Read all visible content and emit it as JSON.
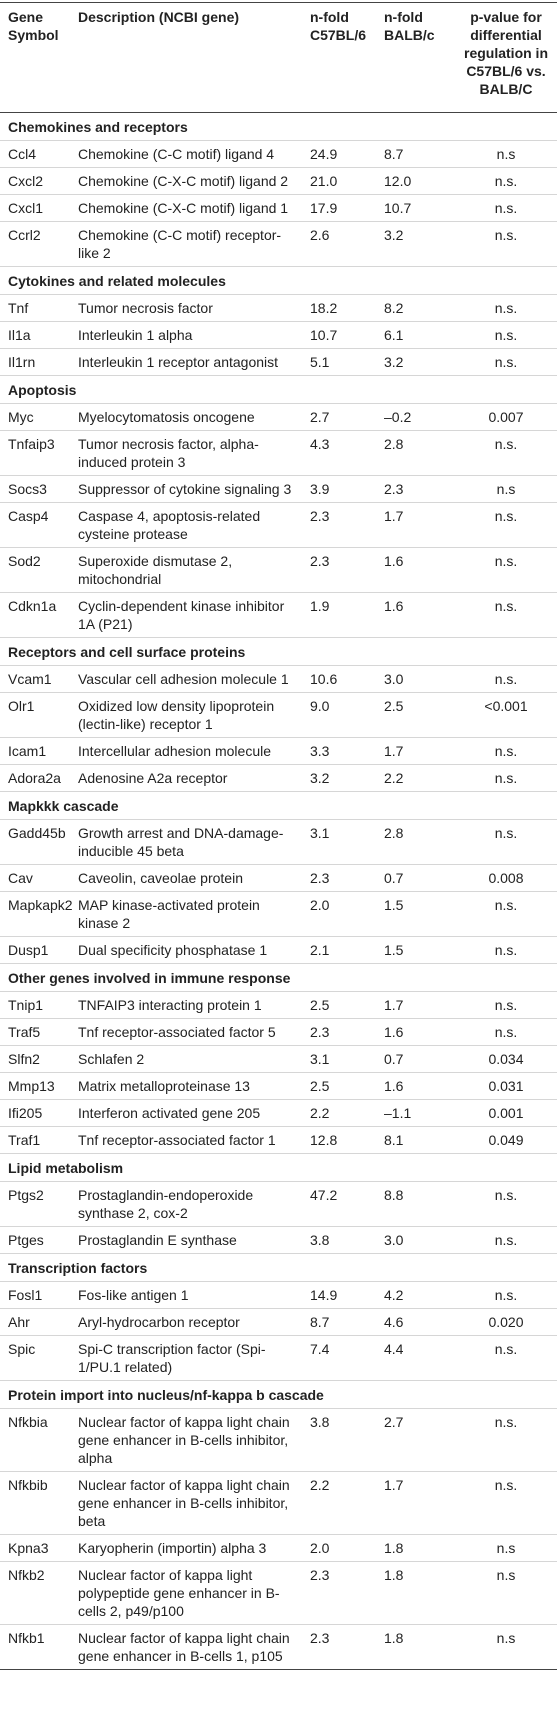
{
  "table": {
    "header": [
      "Gene Symbol",
      "Description (NCBI gene)",
      "n-fold C57BL/6",
      "n-fold BALB/c",
      "p-value for differential regulation in C57BL/6 vs. BALB/C"
    ],
    "sections": [
      {
        "title": "Chemokines and receptors",
        "rows": [
          [
            "Ccl4",
            "Chemokine (C-C motif) ligand 4",
            "24.9",
            "8.7",
            "n.s"
          ],
          [
            "Cxcl2",
            "Chemokine (C-X-C motif) ligand 2",
            "21.0",
            "12.0",
            "n.s."
          ],
          [
            "Cxcl1",
            "Chemokine (C-X-C motif) ligand 1",
            "17.9",
            "10.7",
            "n.s."
          ],
          [
            "Ccrl2",
            "Chemokine (C-C motif) receptor-like 2",
            "2.6",
            "3.2",
            "n.s."
          ]
        ]
      },
      {
        "title": "Cytokines and related molecules",
        "rows": [
          [
            "Tnf",
            "Tumor necrosis factor",
            "18.2",
            "8.2",
            "n.s."
          ],
          [
            "Il1a",
            "Interleukin 1 alpha",
            "10.7",
            "6.1",
            "n.s."
          ],
          [
            "Il1rn",
            "Interleukin 1 receptor antagonist",
            "5.1",
            "3.2",
            "n.s."
          ]
        ]
      },
      {
        "title": "Apoptosis",
        "rows": [
          [
            "Myc",
            "Myelocytomatosis oncogene",
            "2.7",
            "–0.2",
            "0.007"
          ],
          [
            "Tnfaip3",
            "Tumor necrosis factor, alpha-induced protein 3",
            "4.3",
            "2.8",
            "n.s."
          ],
          [
            "Socs3",
            "Suppressor of cytokine signaling 3",
            "3.9",
            "2.3",
            "n.s"
          ],
          [
            "Casp4",
            "Caspase 4, apoptosis-related cysteine protease",
            "2.3",
            "1.7",
            "n.s."
          ],
          [
            "Sod2",
            "Superoxide dismutase 2, mitochondrial",
            "2.3",
            "1.6",
            "n.s."
          ],
          [
            "Cdkn1a",
            "Cyclin-dependent kinase inhibitor 1A (P21)",
            "1.9",
            "1.6",
            "n.s."
          ]
        ]
      },
      {
        "title": "Receptors and cell surface proteins",
        "rows": [
          [
            "Vcam1",
            "Vascular cell adhesion molecule 1",
            "10.6",
            "3.0",
            "n.s."
          ],
          [
            "Olr1",
            "Oxidized low density lipoprotein (lectin-like) receptor 1",
            "9.0",
            "2.5",
            "<0.001"
          ],
          [
            "Icam1",
            "Intercellular adhesion molecule",
            "3.3",
            "1.7",
            "n.s."
          ],
          [
            "Adora2a",
            "Adenosine A2a receptor",
            "3.2",
            "2.2",
            "n.s."
          ]
        ]
      },
      {
        "title": "Mapkkk cascade",
        "rows": [
          [
            "Gadd45b",
            "Growth arrest and DNA-damage-inducible 45 beta",
            "3.1",
            "2.8",
            "n.s."
          ],
          [
            "Cav",
            "Caveolin, caveolae protein",
            "2.3",
            "0.7",
            "0.008"
          ],
          [
            "Mapkapk2",
            "MAP kinase-activated protein kinase 2",
            "2.0",
            "1.5",
            "n.s."
          ],
          [
            "Dusp1",
            "Dual specificity phosphatase 1",
            "2.1",
            "1.5",
            "n.s."
          ]
        ]
      },
      {
        "title": "Other genes involved in immune response",
        "rows": [
          [
            "Tnip1",
            "TNFAIP3 interacting protein 1",
            "2.5",
            "1.7",
            "n.s."
          ],
          [
            "Traf5",
            "Tnf receptor-associated factor 5",
            "2.3",
            "1.6",
            "n.s."
          ],
          [
            "Slfn2",
            "Schlafen 2",
            "3.1",
            "0.7",
            "0.034"
          ],
          [
            "Mmp13",
            "Matrix metalloproteinase 13",
            "2.5",
            "1.6",
            "0.031"
          ],
          [
            "Ifi205",
            "Interferon activated gene 205",
            "2.2",
            "–1.1",
            "0.001"
          ],
          [
            "Traf1",
            "Tnf receptor-associated factor 1",
            "12.8",
            "8.1",
            "0.049"
          ]
        ]
      },
      {
        "title": "Lipid metabolism",
        "rows": [
          [
            "Ptgs2",
            "Prostaglandin-endoperoxide synthase 2, cox-2",
            "47.2",
            "8.8",
            "n.s."
          ],
          [
            "Ptges",
            "Prostaglandin E synthase",
            "3.8",
            "3.0",
            "n.s."
          ]
        ]
      },
      {
        "title": "Transcription factors",
        "rows": [
          [
            "Fosl1",
            "Fos-like antigen 1",
            "14.9",
            "4.2",
            "n.s."
          ],
          [
            "Ahr",
            "Aryl-hydrocarbon receptor",
            "8.7",
            "4.6",
            "0.020"
          ],
          [
            "Spic",
            "Spi-C transcription factor (Spi-1/PU.1 related)",
            "7.4",
            "4.4",
            "n.s."
          ]
        ]
      },
      {
        "title": "Protein import into nucleus/nf-kappa b cascade",
        "rows": [
          [
            "Nfkbia",
            "Nuclear factor of kappa light chain gene enhancer in B-cells inhibitor, alpha",
            "3.8",
            "2.7",
            "n.s."
          ],
          [
            "Nfkbib",
            "Nuclear factor of kappa light chain gene enhancer in B-cells inhibitor, beta",
            "2.2",
            "1.7",
            "n.s."
          ],
          [
            "Kpna3",
            "Karyopherin (importin) alpha 3",
            "2.0",
            "1.8",
            "n.s"
          ],
          [
            "Nfkb2",
            "Nuclear factor of kappa light polypeptide gene enhancer in B-cells 2, p49/p100",
            "2.3",
            "1.8",
            "n.s"
          ],
          [
            "Nfkb1",
            "Nuclear factor of kappa light chain gene enhancer in B-cells 1, p105",
            "2.3",
            "1.8",
            "n.s"
          ]
        ]
      }
    ]
  }
}
